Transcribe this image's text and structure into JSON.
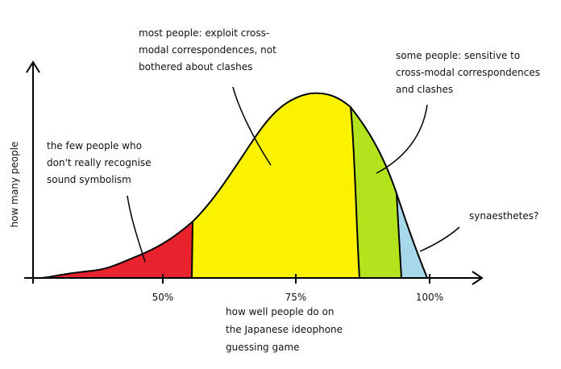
{
  "axis": {
    "x_label": [
      "how well people do on",
      "the Japanese ideophone",
      "guessing game"
    ],
    "y_label": "how many people",
    "ticks": [
      "50%",
      "75%",
      "100%"
    ]
  },
  "annotations": {
    "few": [
      "the few people who",
      "don't really recognise",
      "sound symbolism"
    ],
    "most": [
      "most people: exploit cross-",
      "modal correspondences, not",
      "bothered about clashes"
    ],
    "some": [
      "some people: sensitive to",
      "cross-modal correspondences",
      "and clashes"
    ],
    "synaesthetes": "synaesthetes?"
  },
  "colors": {
    "few": "#e8232d",
    "most": "#fbf200",
    "some": "#b3e31c",
    "synaesthetes": "#a6d8ea",
    "line": "#000000"
  },
  "regions": [
    {
      "name": "few",
      "range_pct": [
        30,
        55
      ]
    },
    {
      "name": "most",
      "range_pct": [
        55,
        86
      ]
    },
    {
      "name": "some",
      "range_pct": [
        86,
        94
      ]
    },
    {
      "name": "synaesthetes",
      "range_pct": [
        94,
        100
      ]
    }
  ]
}
